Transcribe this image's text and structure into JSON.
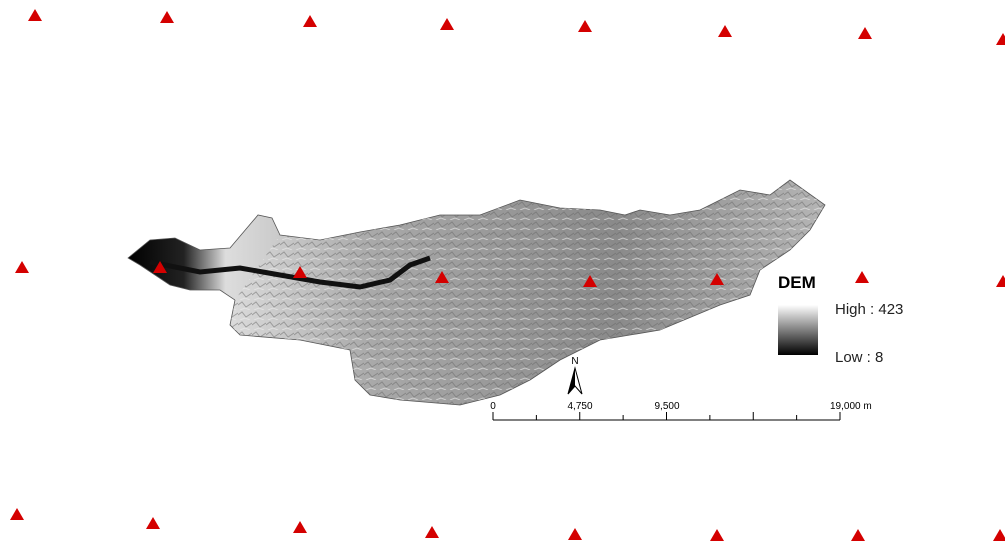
{
  "legend": {
    "title": "DEM",
    "high_label": "High : 423",
    "low_label": "Low : 8"
  },
  "north_arrow": {
    "label": "N"
  },
  "scale_bar": {
    "labels": [
      "0",
      "4,750",
      "9,500",
      "19,000 m"
    ]
  }
}
